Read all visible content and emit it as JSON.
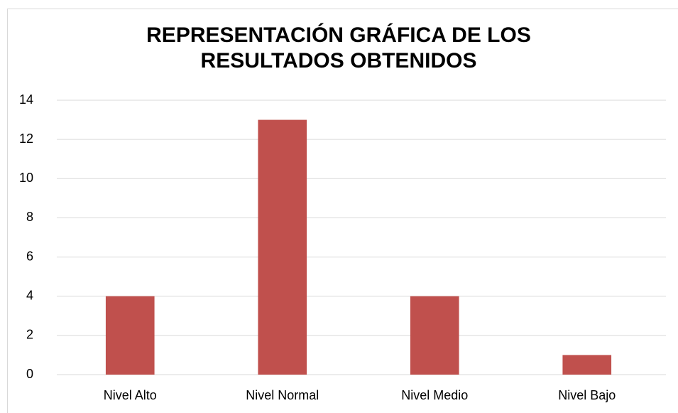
{
  "chart_data": {
    "type": "bar",
    "title": "REPRESENTACIÓN GRÁFICA DE LOS RESULTADOS OBTENIDOS",
    "categories": [
      "Nivel Alto",
      "Nivel Normal",
      "Nivel Medio",
      "Nivel Bajo"
    ],
    "values": [
      4,
      13,
      4,
      1
    ],
    "color": "#c0504d",
    "ylim": [
      0,
      14
    ],
    "yticks": [
      0,
      2,
      4,
      6,
      8,
      10,
      12,
      14
    ],
    "grid": true
  }
}
